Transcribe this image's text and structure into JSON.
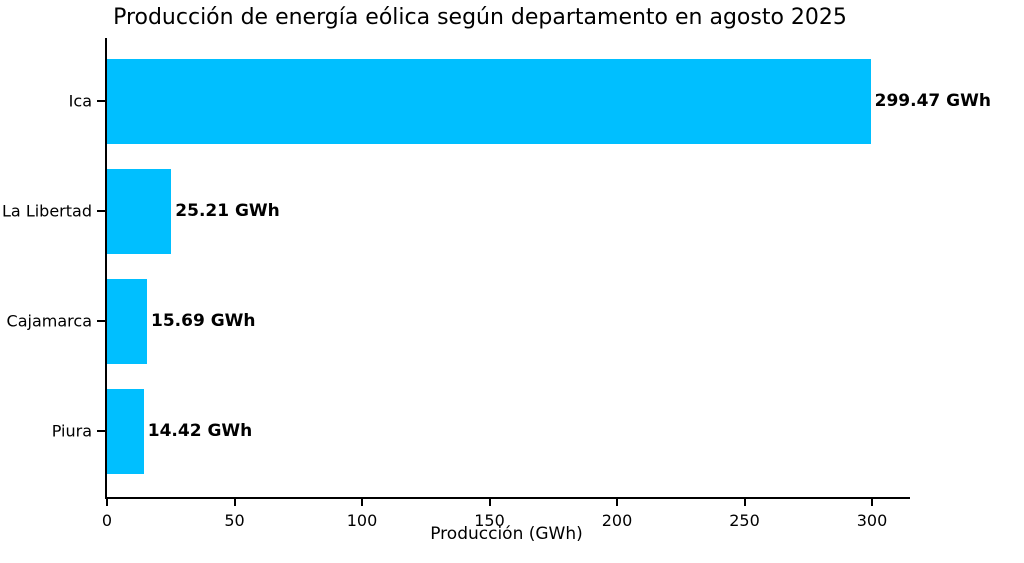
{
  "chart_data": {
    "type": "bar",
    "orientation": "horizontal",
    "title": "Producción de energía eólica según departamento en agosto 2025",
    "xlabel": "Producción (GWh)",
    "ylabel": "",
    "categories": [
      "Ica",
      "La Libertad",
      "Cajamarca",
      "Piura"
    ],
    "values": [
      299.47,
      25.21,
      15.69,
      14.42
    ],
    "value_labels": [
      "299.47 GWh",
      "25.21 GWh",
      "15.69 GWh",
      "14.42 GWh"
    ],
    "xticks": [
      0,
      50,
      100,
      150,
      200,
      250,
      300
    ],
    "xlim": [
      0,
      315
    ],
    "grid": false,
    "legend": "none",
    "bar_color": "#00BFFF",
    "text_color": "#000000",
    "background_color": "#FFFFFF"
  }
}
